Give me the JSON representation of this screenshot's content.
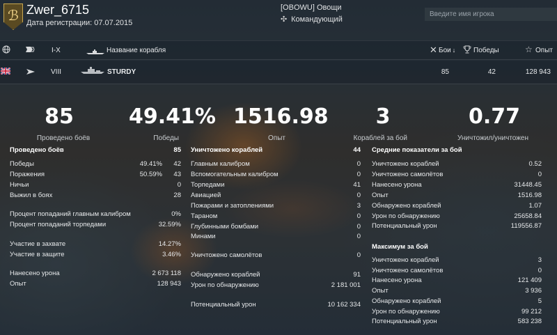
{
  "player": {
    "name": "Zwer_6715",
    "reg_label": "Дата регистрации:",
    "reg_date": "07.07.2015",
    "clan": "[OBOWU] Овощи",
    "role": "Командующий",
    "emblem_glyph": "ℬ"
  },
  "search": {
    "placeholder": "Введите имя игрока"
  },
  "filter": {
    "tier_range": "I-X",
    "ship_name_label": "Название корабля",
    "battles_label": "Бои",
    "wins_label": "Победы",
    "xp_label": "Опыт",
    "icons": [
      "globe-icon",
      "ship-class-icon",
      "ship-silhouette-icon",
      "close-icon",
      "sort-down-icon",
      "trophy-icon",
      "star-icon"
    ]
  },
  "ship": {
    "flag": "uk-flag-icon",
    "class_icon": "destroyer-icon",
    "tier": "VIII",
    "name": "STURDY",
    "battles": "85",
    "wins": "42",
    "xp": "128 943"
  },
  "big_stats": [
    {
      "value": "85",
      "label": "Проведено боёв"
    },
    {
      "value": "49.41%",
      "label": "Победы"
    },
    {
      "value": "1516.98",
      "label": "Опыт"
    },
    {
      "value": "3",
      "label": "Кораблей за бой"
    },
    {
      "value": "0.77",
      "label": "Уничтожил/уничтожен"
    }
  ],
  "col1": {
    "header": {
      "label": "Проведено боёв",
      "value": "85"
    },
    "rows": [
      {
        "label": "Победы",
        "pct": "49.41%",
        "value": "42"
      },
      {
        "label": "Поражения",
        "pct": "50.59%",
        "value": "43"
      },
      {
        "label": "Ничьи",
        "pct": "",
        "value": "0"
      },
      {
        "label": "Выжил в боях",
        "pct": "",
        "value": "28"
      },
      {
        "label": "Процент попаданий главным калибром",
        "pct": "",
        "value": "0%"
      },
      {
        "label": "Процент попаданий торпедами",
        "pct": "",
        "value": "32.59%"
      },
      {
        "label": "Участие в захвате",
        "pct": "",
        "value": "14.27%"
      },
      {
        "label": "Участие в защите",
        "pct": "",
        "value": "3.46%"
      },
      {
        "label": "Нанесено урона",
        "pct": "",
        "value": "2 673 118"
      },
      {
        "label": "Опыт",
        "pct": "",
        "value": "128 943"
      }
    ]
  },
  "col2": {
    "header": {
      "label": "Уничтожено кораблей",
      "value": "44"
    },
    "rows": [
      {
        "label": "Главным калибром",
        "value": "0"
      },
      {
        "label": "Вспомогательным калибром",
        "value": "0"
      },
      {
        "label": "Торпедами",
        "value": "41"
      },
      {
        "label": "Авиацией",
        "value": "0"
      },
      {
        "label": "Пожарами и затоплениями",
        "value": "3"
      },
      {
        "label": "Тараном",
        "value": "0"
      },
      {
        "label": "Глубинными бомбами",
        "value": "0"
      },
      {
        "label": "Минами",
        "value": "0"
      },
      {
        "label": "Уничтожено самолётов",
        "value": "0"
      },
      {
        "label": "Обнаружено кораблей",
        "value": "91"
      },
      {
        "label": "Урон по обнаружению",
        "value": "2 181 001"
      },
      {
        "label": "Потенциальный урон",
        "value": "10 162 334"
      }
    ]
  },
  "col3": {
    "header": {
      "label": "Средние показатели за бой"
    },
    "rows": [
      {
        "label": "Уничтожено кораблей",
        "value": "0.52"
      },
      {
        "label": "Уничтожено самолётов",
        "value": "0"
      },
      {
        "label": "Нанесено урона",
        "value": "31448.45"
      },
      {
        "label": "Опыт",
        "value": "1516.98"
      },
      {
        "label": "Обнаружено кораблей",
        "value": "1.07"
      },
      {
        "label": "Урон по обнаружению",
        "value": "25658.84"
      },
      {
        "label": "Потенциальный урон",
        "value": "119556.87"
      }
    ],
    "max_header": {
      "label": "Максимум за бой"
    },
    "max_rows": [
      {
        "label": "Уничтожено кораблей",
        "value": "3"
      },
      {
        "label": "Уничтожено самолётов",
        "value": "0"
      },
      {
        "label": "Нанесено урона",
        "value": "121 409"
      },
      {
        "label": "Опыт",
        "value": "3 936"
      },
      {
        "label": "Обнаружено кораблей",
        "value": "5"
      },
      {
        "label": "Урон по обнаружению",
        "value": "99 212"
      },
      {
        "label": "Потенциальный урон",
        "value": "583 238"
      }
    ]
  }
}
